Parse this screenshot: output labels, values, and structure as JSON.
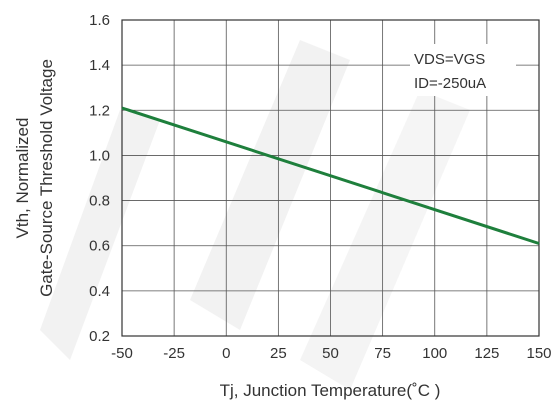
{
  "chart_data": {
    "type": "line",
    "title": "",
    "xlabel": "Tj,  Junction  Temperature(˚C )",
    "ylabel_line1": "Vth, Normalized",
    "ylabel_line2": "Gate-Source Threshold Voltage",
    "xlim": [
      -50,
      150
    ],
    "ylim": [
      0.2,
      1.6
    ],
    "xticks": [
      "-50",
      "-25",
      "0",
      "25",
      "50",
      "75",
      "100",
      "125",
      "150"
    ],
    "yticks": [
      "0.2",
      "0.4",
      "0.6",
      "0.8",
      "1.0",
      "1.2",
      "1.4",
      "1.6"
    ],
    "grid": true,
    "legend": "none",
    "series": [
      {
        "x": [
          -50,
          150
        ],
        "values": [
          1.21,
          0.61
        ],
        "color": "#1e7f3c"
      }
    ],
    "annotations": [
      {
        "line1": "VDS=VGS",
        "line2": "ID=-250uA"
      }
    ]
  }
}
